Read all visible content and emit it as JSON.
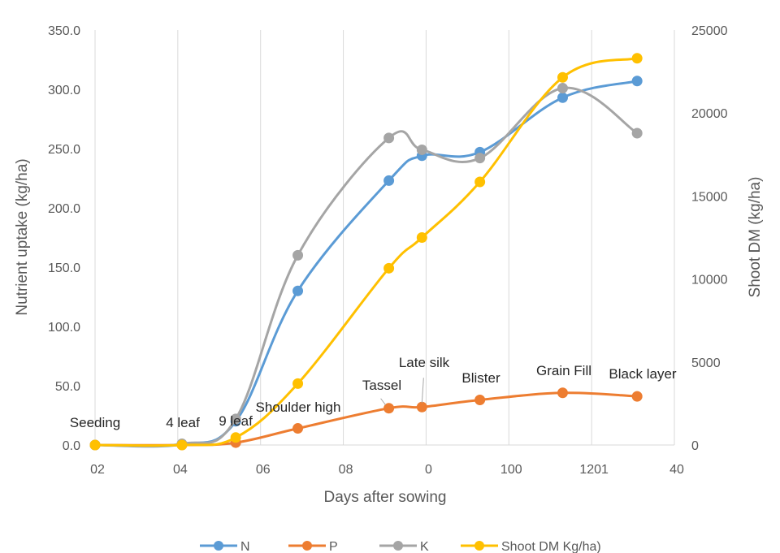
{
  "chart_data": {
    "type": "line",
    "title": "",
    "xlabel": "Days after sowing",
    "ylabel": "Nutrient uptake (kg/ha)",
    "y2label": "Shoot DM (kg/ha)",
    "ylim": [
      0,
      350
    ],
    "y2lim": [
      0,
      25000
    ],
    "xlim": [
      0,
      140
    ],
    "x_tick_labels": [
      "02",
      "04",
      "06",
      "08",
      "0",
      "100",
      "1201",
      "40"
    ],
    "y_tick_labels": [
      "0.0",
      "50.0",
      "100.0",
      "150.0",
      "200.0",
      "250.0",
      "300.0",
      "350.0"
    ],
    "y2_tick_labels": [
      "0",
      "5000",
      "10000",
      "15000",
      "20000",
      "25000"
    ],
    "grid": "vertical",
    "legend_position": "bottom",
    "x": [
      0,
      21,
      34,
      49,
      71,
      79,
      93,
      113,
      131
    ],
    "series": [
      {
        "name": "N",
        "color": "#5B9BD5",
        "axis": "left",
        "values": [
          0,
          0.5,
          20,
          130,
          223,
          244,
          247,
          293,
          307
        ]
      },
      {
        "name": "P",
        "color": "#ED7D31",
        "axis": "left",
        "values": [
          0,
          0,
          2,
          14,
          31,
          32,
          38,
          44,
          41
        ]
      },
      {
        "name": "K",
        "color": "#A5A5A5",
        "axis": "left",
        "values": [
          0,
          1,
          22,
          160,
          259,
          249,
          242,
          301,
          263
        ]
      },
      {
        "name": "Shoot DM Kg/ha)",
        "color": "#FFC000",
        "axis": "right",
        "values": [
          0,
          0,
          450,
          3700,
          10650,
          12500,
          15850,
          22150,
          23300
        ]
      }
    ],
    "stage_annotations": [
      "Seeding",
      "4 leaf",
      "9 leaf",
      "Shoulder high",
      "Tassel",
      "Late silk",
      "Blister",
      "Grain Fill",
      "Black layer"
    ]
  }
}
